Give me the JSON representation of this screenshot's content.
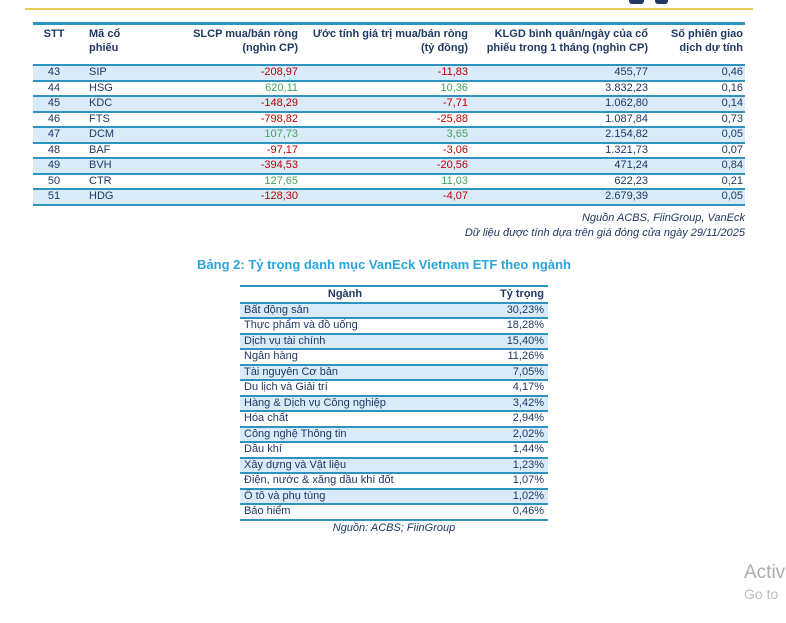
{
  "page": {
    "watermark": {
      "line1": "Activ",
      "line2": "Go to"
    }
  },
  "table1": {
    "header_lines": [
      [
        "STT"
      ],
      [
        "Mã cổ phiếu"
      ],
      [
        "SLCP mua/bán ròng",
        "(nghìn CP)"
      ],
      [
        "Ước tính giá trị mua/bán ròng",
        "(tỷ đồng)"
      ],
      [
        "KLGD bình quân/ngày của cổ",
        "phiếu trong 1 tháng (nghìn CP)"
      ],
      [
        "Số phiên giao",
        "dịch dự tính"
      ]
    ],
    "rows": [
      {
        "stt": "43",
        "ticker": "SIP",
        "slcp": "-208,97",
        "value": "-11,83",
        "klgd": "455,77",
        "sessions": "0,46"
      },
      {
        "stt": "44",
        "ticker": "HSG",
        "slcp": "620,11",
        "value": "10,36",
        "klgd": "3.832,23",
        "sessions": "0,16"
      },
      {
        "stt": "45",
        "ticker": "KDC",
        "slcp": "-148,29",
        "value": "-7,71",
        "klgd": "1.062,80",
        "sessions": "0,14"
      },
      {
        "stt": "46",
        "ticker": "FTS",
        "slcp": "-798,82",
        "value": "-25,88",
        "klgd": "1.087,84",
        "sessions": "0,73"
      },
      {
        "stt": "47",
        "ticker": "DCM",
        "slcp": "107,73",
        "value": "3,65",
        "klgd": "2.154,82",
        "sessions": "0,05"
      },
      {
        "stt": "48",
        "ticker": "BAF",
        "slcp": "-97,17",
        "value": "-3,06",
        "klgd": "1.321,73",
        "sessions": "0,07"
      },
      {
        "stt": "49",
        "ticker": "BVH",
        "slcp": "-394,53",
        "value": "-20,56",
        "klgd": "471,24",
        "sessions": "0,84"
      },
      {
        "stt": "50",
        "ticker": "CTR",
        "slcp": "127,65",
        "value": "11,03",
        "klgd": "622,23",
        "sessions": "0,21"
      },
      {
        "stt": "51",
        "ticker": "HDG",
        "slcp": "-128,30",
        "value": "-4,07",
        "klgd": "2.679,39",
        "sessions": "0,05"
      }
    ],
    "source_line1": "Nguồn ACBS, FiinGroup, VanEck",
    "source_line2": "Dữ liệu được tính dựa trên giá đóng cửa ngày 29/11/2025"
  },
  "section2": {
    "title": "Bảng 2: Tỷ trọng danh mục VanEck Vietnam ETF theo ngành",
    "col_sector": "Ngành",
    "col_weight": "Tỷ trọng",
    "rows": [
      {
        "sector": "Bất động sản",
        "weight": "30,23%"
      },
      {
        "sector": "Thực phẩm và đồ uống",
        "weight": "18,28%"
      },
      {
        "sector": "Dịch vụ tài chính",
        "weight": "15,40%"
      },
      {
        "sector": "Ngân hàng",
        "weight": "11,26%"
      },
      {
        "sector": "Tài nguyên Cơ bản",
        "weight": "7,05%"
      },
      {
        "sector": "Du lịch và Giải trí",
        "weight": "4,17%"
      },
      {
        "sector": "Hàng & Dịch vụ Công nghiệp",
        "weight": "3,42%"
      },
      {
        "sector": "Hóa chất",
        "weight": "2,94%"
      },
      {
        "sector": "Công nghệ Thông tin",
        "weight": "2,02%"
      },
      {
        "sector": "Dầu khí",
        "weight": "1,44%"
      },
      {
        "sector": "Xây dựng và Vật liệu",
        "weight": "1,23%"
      },
      {
        "sector": "Điện, nước & xăng dầu khí đốt",
        "weight": "1,07%"
      },
      {
        "sector": "Ô tô và phụ tùng",
        "weight": "1,02%"
      },
      {
        "sector": "Bảo hiểm",
        "weight": "0,46%"
      }
    ],
    "source": "Nguồn: ACBS; FiinGroup"
  }
}
